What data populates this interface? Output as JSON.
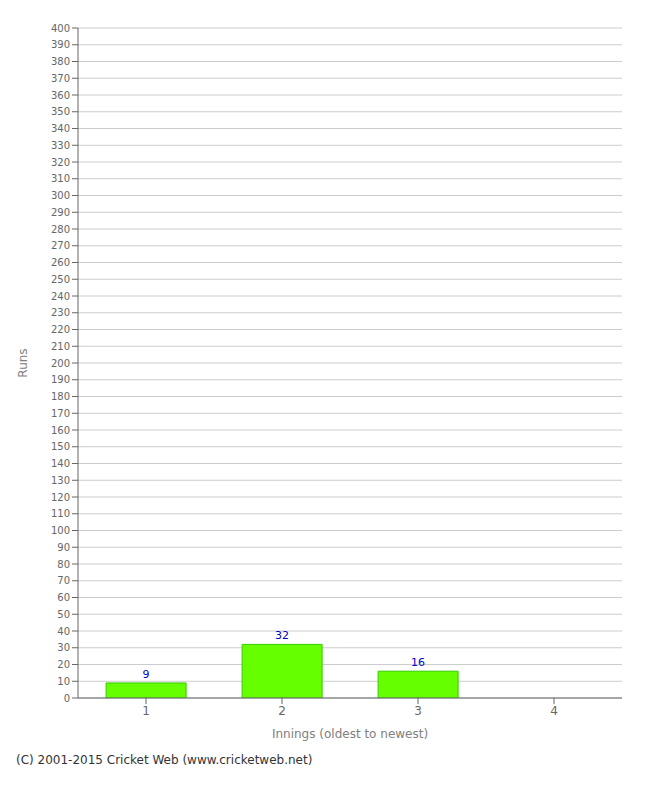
{
  "chart_data": {
    "type": "bar",
    "categories": [
      "1",
      "2",
      "3",
      "4"
    ],
    "values": [
      9,
      32,
      16,
      0
    ],
    "color": "#66ff00",
    "xlabel": "Innings (oldest to newest)",
    "ylabel": "Runs",
    "ylim": [
      0,
      400
    ],
    "yticks": [
      0,
      10,
      20,
      30,
      40,
      50,
      60,
      70,
      80,
      90,
      100,
      110,
      120,
      130,
      140,
      150,
      160,
      170,
      180,
      190,
      200,
      210,
      220,
      230,
      240,
      250,
      260,
      270,
      280,
      290,
      300,
      310,
      320,
      330,
      340,
      350,
      360,
      370,
      380,
      390,
      400
    ],
    "grid": true,
    "data_labels": true,
    "annotations": [
      "(C) 2001-2015 Cricket Web (www.cricketweb.net)"
    ]
  }
}
